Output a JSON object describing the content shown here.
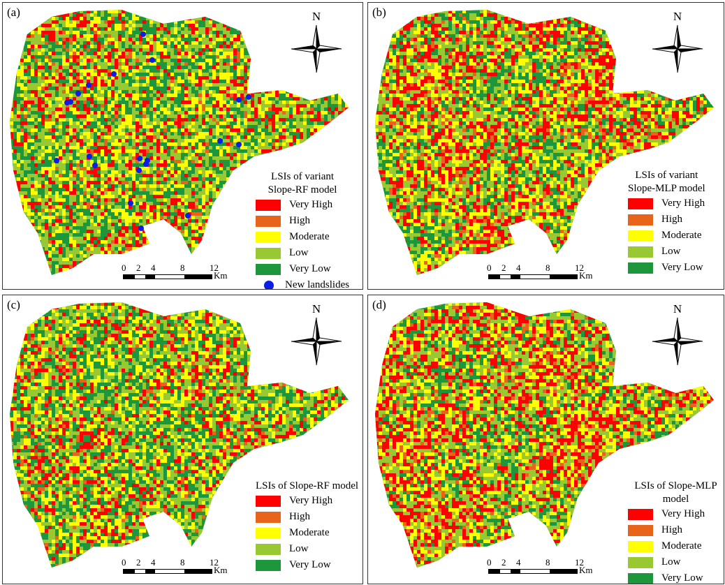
{
  "colors": {
    "very_high": "#ff0000",
    "high": "#e8641a",
    "moderate": "#ffff00",
    "low": "#98c832",
    "very_low": "#1e963c",
    "landslide": "#0a1ee6"
  },
  "north_label": "N",
  "scale": {
    "ticks": [
      "0",
      "2",
      "4",
      "8",
      "12"
    ],
    "unit": "Km"
  },
  "legend_items": [
    "Very High",
    "High",
    "Moderate",
    "Low",
    "Very Low"
  ],
  "landslide_label": "New landslides",
  "panels": [
    {
      "label": "(a)",
      "legend_title_1": "LSIs of variant",
      "legend_title_2": "Slope-RF model"
    },
    {
      "label": "(b)",
      "legend_title_1": "LSIs of variant",
      "legend_title_2": "Slope-MLP model"
    },
    {
      "label": "(c)",
      "legend_title_1": "LSIs of Slope-RF model",
      "legend_title_2": ""
    },
    {
      "label": "(d)",
      "legend_title_1": "LSIs of Slope-MLP model",
      "legend_title_2": ""
    }
  ]
}
